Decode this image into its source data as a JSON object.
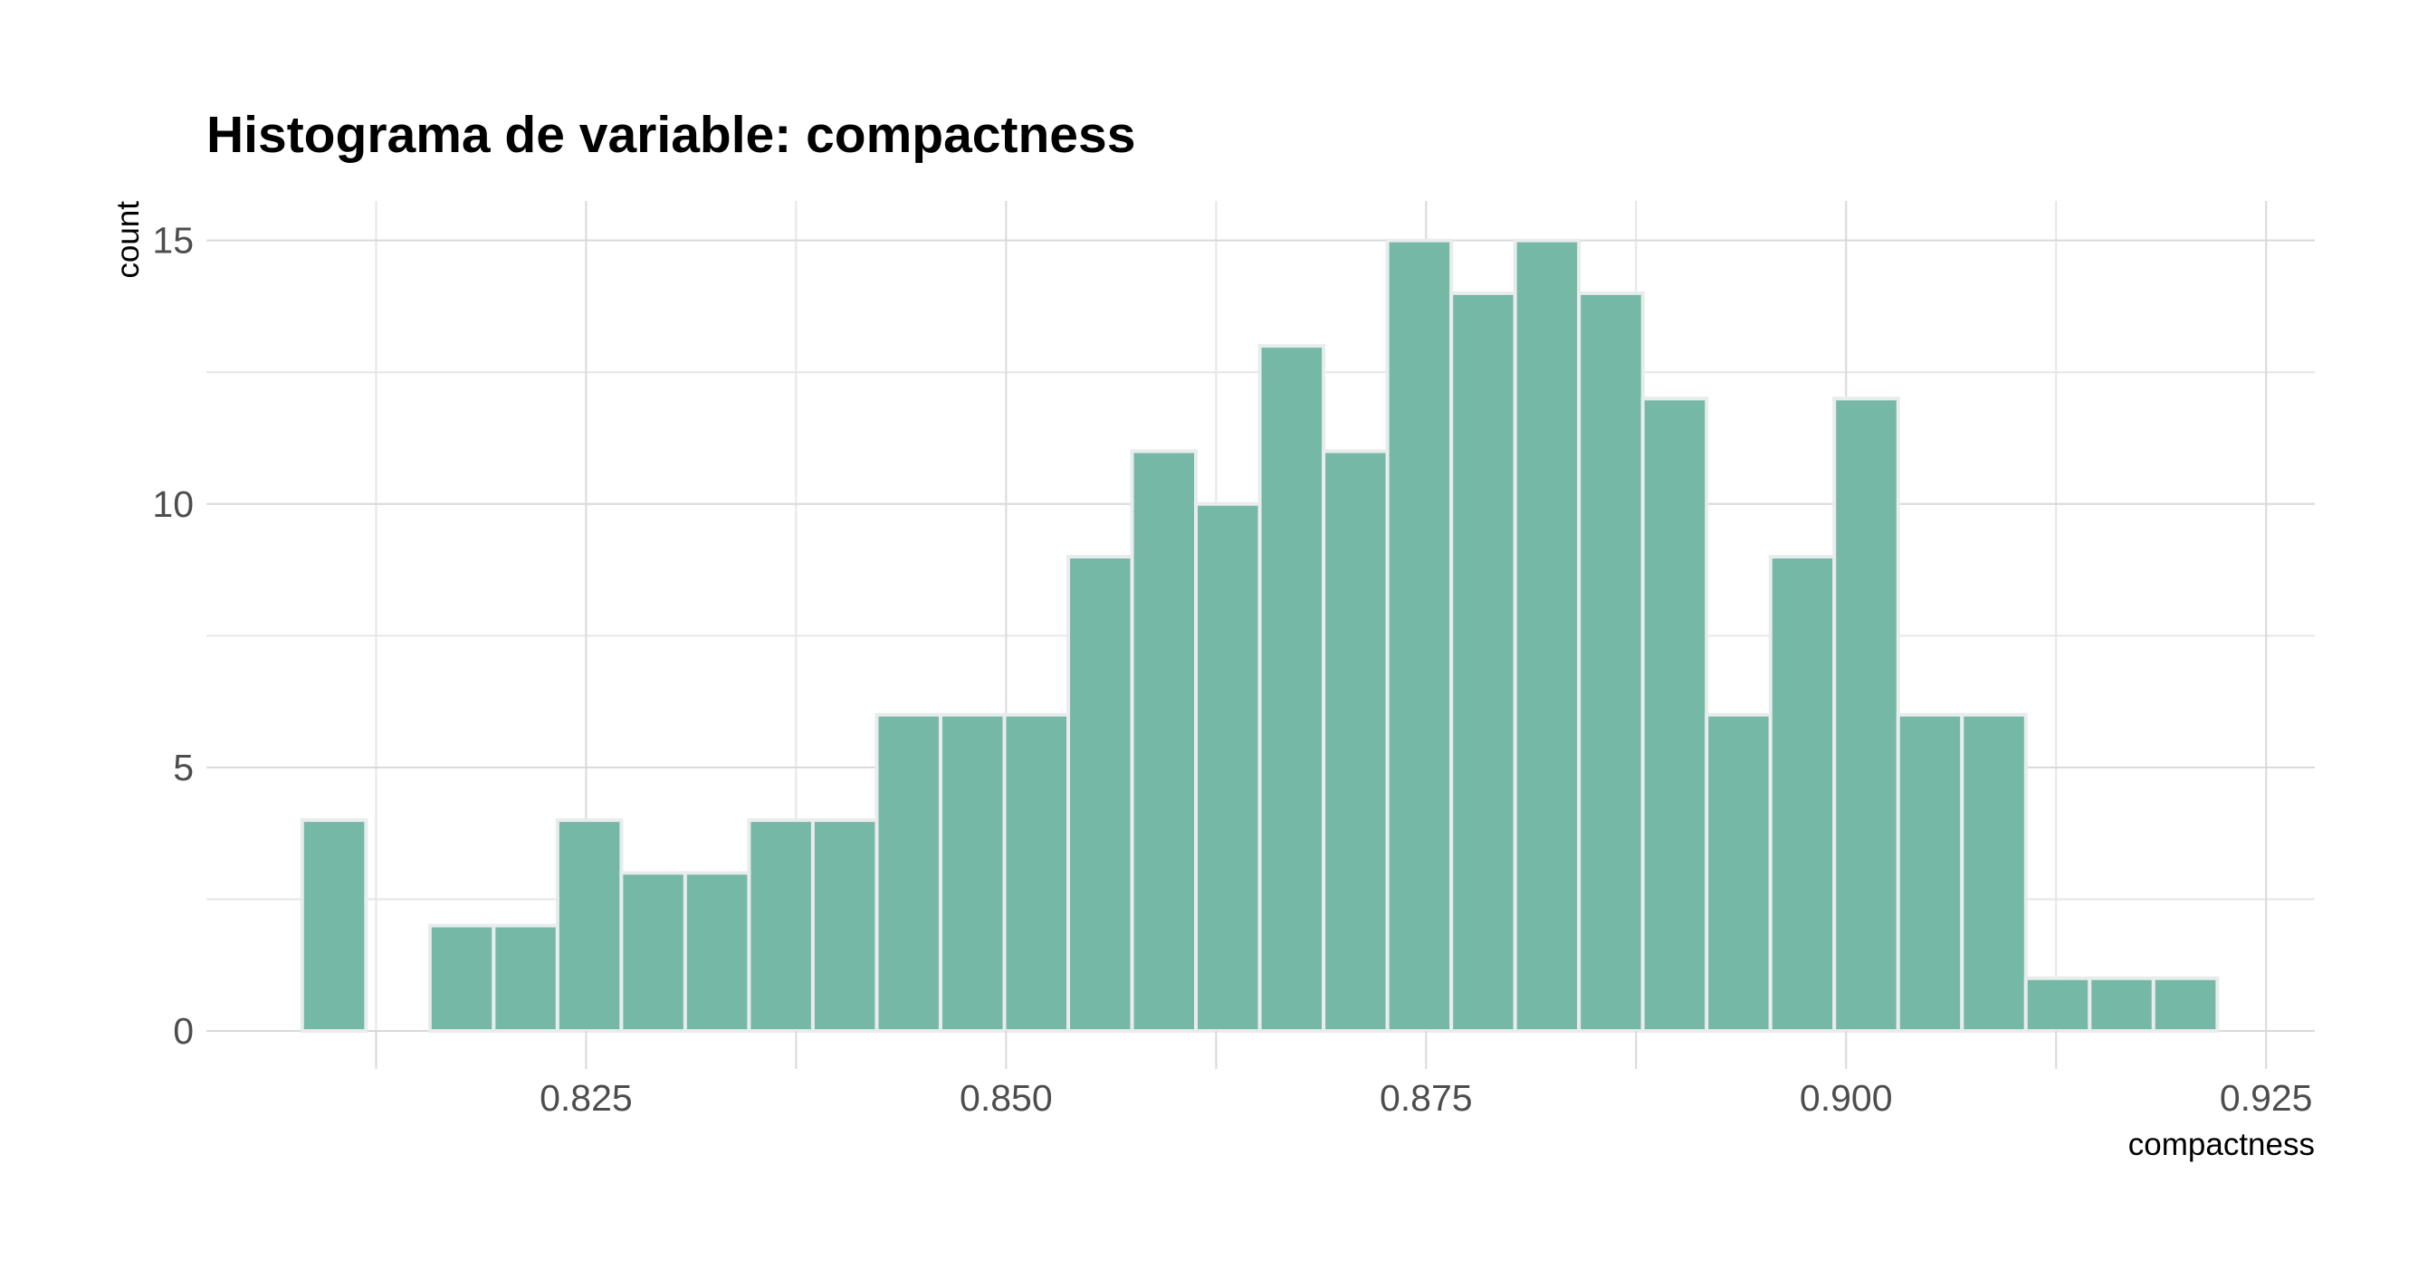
{
  "chart_data": {
    "type": "bar",
    "title": "Histograma de variable: compactness",
    "xlabel": "compactness",
    "ylabel": "count",
    "bin_width": 0.0038,
    "bins": [
      {
        "start": 0.8081,
        "end": 0.8119,
        "count": 4
      },
      {
        "start": 0.8119,
        "end": 0.8157,
        "count": 0
      },
      {
        "start": 0.8157,
        "end": 0.8195,
        "count": 2
      },
      {
        "start": 0.8195,
        "end": 0.8233,
        "count": 2
      },
      {
        "start": 0.8233,
        "end": 0.8271,
        "count": 4
      },
      {
        "start": 0.8271,
        "end": 0.8309,
        "count": 3
      },
      {
        "start": 0.8309,
        "end": 0.8347,
        "count": 3
      },
      {
        "start": 0.8347,
        "end": 0.8385,
        "count": 4
      },
      {
        "start": 0.8385,
        "end": 0.8423,
        "count": 4
      },
      {
        "start": 0.8423,
        "end": 0.8461,
        "count": 6
      },
      {
        "start": 0.8461,
        "end": 0.8499,
        "count": 6
      },
      {
        "start": 0.8499,
        "end": 0.8537,
        "count": 6
      },
      {
        "start": 0.8537,
        "end": 0.8575,
        "count": 9
      },
      {
        "start": 0.8575,
        "end": 0.8613,
        "count": 11
      },
      {
        "start": 0.8613,
        "end": 0.8651,
        "count": 10
      },
      {
        "start": 0.8651,
        "end": 0.8689,
        "count": 13
      },
      {
        "start": 0.8689,
        "end": 0.8727,
        "count": 11
      },
      {
        "start": 0.8727,
        "end": 0.8765,
        "count": 15
      },
      {
        "start": 0.8765,
        "end": 0.8803,
        "count": 14
      },
      {
        "start": 0.8803,
        "end": 0.8841,
        "count": 15
      },
      {
        "start": 0.8841,
        "end": 0.8879,
        "count": 14
      },
      {
        "start": 0.8879,
        "end": 0.8917,
        "count": 12
      },
      {
        "start": 0.8917,
        "end": 0.8955,
        "count": 6
      },
      {
        "start": 0.8955,
        "end": 0.8993,
        "count": 9
      },
      {
        "start": 0.8993,
        "end": 0.9031,
        "count": 12
      },
      {
        "start": 0.9031,
        "end": 0.9069,
        "count": 6
      },
      {
        "start": 0.9069,
        "end": 0.9107,
        "count": 6
      },
      {
        "start": 0.9107,
        "end": 0.9145,
        "count": 1
      },
      {
        "start": 0.9145,
        "end": 0.9183,
        "count": 1
      },
      {
        "start": 0.9183,
        "end": 0.9221,
        "count": 1
      }
    ],
    "x_ticks": [
      0.825,
      0.85,
      0.875,
      0.9,
      0.925
    ],
    "x_tick_labels": [
      "0.825",
      "0.850",
      "0.875",
      "0.900",
      "0.925"
    ],
    "y_ticks": [
      0,
      5,
      10,
      15
    ],
    "y_tick_labels": [
      "0",
      "5",
      "10",
      "15"
    ],
    "xlim": [
      0.8024,
      0.9279
    ],
    "ylim": [
      0,
      15.75
    ],
    "grid": true,
    "legend": "none",
    "colors": {
      "bar_fill": "#76b8a6",
      "bar_outline": "#e8ecec"
    }
  }
}
